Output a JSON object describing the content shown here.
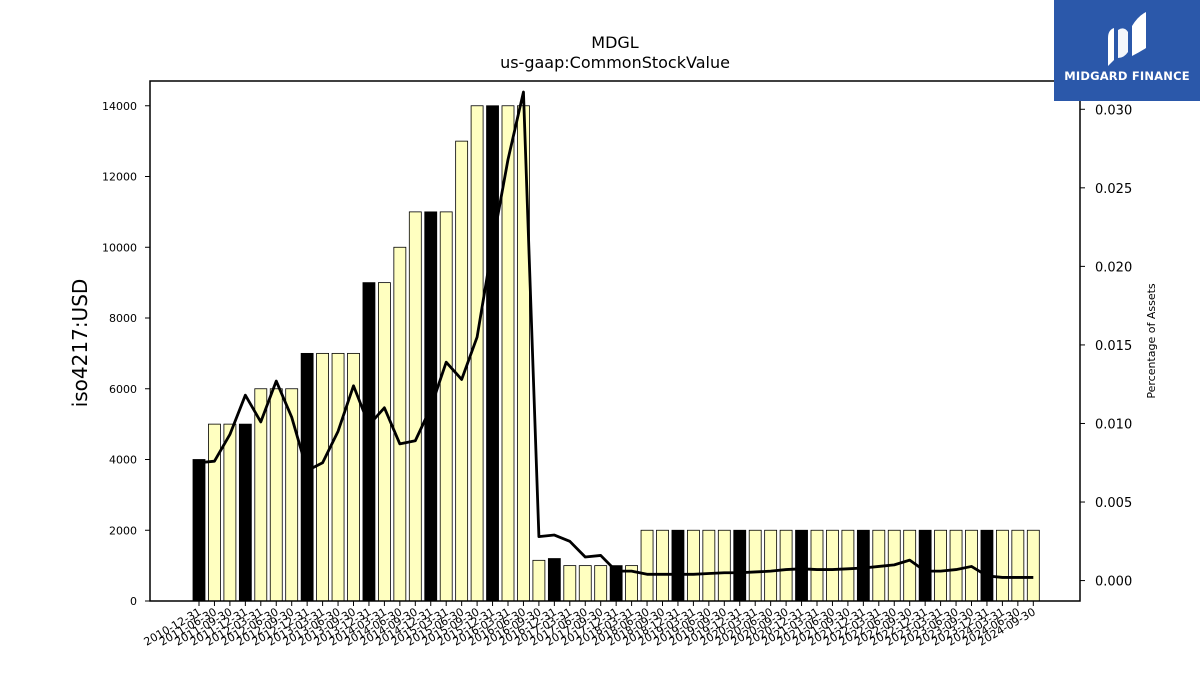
{
  "chart_data": {
    "type": "bar",
    "title": "MDGL",
    "subtitle": "us-gaap:CommonStockValue",
    "ylabel": "iso4217:USD",
    "y2label": "Percentage of Assets",
    "ylim": [
      0,
      14700
    ],
    "y2lim": [
      -0.0013,
      0.0318
    ],
    "yticks": [
      0,
      2000,
      4000,
      6000,
      8000,
      10000,
      12000,
      14000
    ],
    "y2ticks": [
      0.0,
      0.005,
      0.01,
      0.015,
      0.02,
      0.025,
      0.03
    ],
    "y2tick_labels": [
      "0.000",
      "0.005",
      "0.010",
      "0.015",
      "0.020",
      "0.025",
      "0.030"
    ],
    "grid": false,
    "colors": {
      "annual": "#000000",
      "quarter": "#ffffc0",
      "edge": "#000000",
      "line": "#000000"
    },
    "categories": [
      "2010-12-31",
      "2011-06-30",
      "2011-09-30",
      "2011-12-31",
      "2012-03-31",
      "2012-06-30",
      "2012-09-30",
      "2012-12-31",
      "2013-03-31",
      "2013-06-30",
      "2013-09-30",
      "2013-12-31",
      "2014-03-31",
      "2014-06-30",
      "2014-09-30",
      "2014-12-31",
      "2015-03-31",
      "2015-06-30",
      "2015-09-30",
      "2015-12-31",
      "2016-03-31",
      "2016-06-30",
      "2016-09-30",
      "2016-12-31",
      "2017-03-31",
      "2017-06-30",
      "2017-09-30",
      "2017-12-31",
      "2018-03-31",
      "2018-06-30",
      "2018-09-30",
      "2018-12-31",
      "2019-03-31",
      "2019-06-30",
      "2019-09-30",
      "2019-12-31",
      "2020-03-31",
      "2020-06-30",
      "2020-09-30",
      "2020-12-31",
      "2021-03-31",
      "2021-06-30",
      "2021-09-30",
      "2021-12-31",
      "2022-03-31",
      "2022-06-30",
      "2022-09-30",
      "2022-12-31",
      "2023-03-31",
      "2023-06-30",
      "2023-09-30",
      "2023-12-31",
      "2024-03-31",
      "2024-06-30",
      "2024-09-30"
    ],
    "series": [
      {
        "kind": "bar",
        "values": [
          4000,
          5000,
          5000,
          5000,
          6000,
          6000,
          6000,
          7000,
          7000,
          7000,
          7000,
          9000,
          9000,
          10000,
          11000,
          11000,
          11000,
          13000,
          14000,
          14000,
          14000,
          14000,
          1150,
          1200,
          1000,
          1000,
          1000,
          1000,
          1000,
          2000,
          2000,
          2000,
          2000,
          2000,
          2000,
          2000,
          2000,
          2000,
          2000,
          2000,
          2000,
          2000,
          2000,
          2000,
          2000,
          2000,
          2000,
          2000,
          2000,
          2000,
          2000,
          2000,
          2000,
          2000,
          2000
        ],
        "annual": [
          true,
          false,
          false,
          true,
          false,
          false,
          false,
          true,
          false,
          false,
          false,
          true,
          false,
          false,
          false,
          true,
          false,
          false,
          false,
          true,
          false,
          false,
          false,
          true,
          false,
          false,
          false,
          true,
          false,
          false,
          false,
          true,
          false,
          false,
          false,
          true,
          false,
          false,
          false,
          true,
          false,
          false,
          false,
          true,
          false,
          false,
          false,
          true,
          false,
          false,
          false,
          true,
          false,
          false,
          false
        ]
      },
      {
        "kind": "line",
        "axis": "right",
        "values": [
          0.0075,
          0.0076,
          0.0093,
          0.0118,
          0.0101,
          0.0127,
          0.0104,
          0.007,
          0.0075,
          0.0095,
          0.0124,
          0.0099,
          0.011,
          0.0087,
          0.0089,
          0.011,
          0.0139,
          0.0128,
          0.0155,
          0.0214,
          0.0268,
          0.0311,
          0.0028,
          0.0029,
          0.0025,
          0.0015,
          0.0016,
          0.0006,
          0.0006,
          0.0004,
          0.0004,
          0.0004,
          0.0004,
          0.00045,
          0.0005,
          0.0005,
          0.00055,
          0.0006,
          0.0007,
          0.00075,
          0.0007,
          0.0007,
          0.00075,
          0.0008,
          0.0009,
          0.001,
          0.0013,
          0.0006,
          0.0006,
          0.0007,
          0.0009,
          0.0003,
          0.0002,
          0.0002,
          0.0002
        ]
      }
    ]
  },
  "logo": {
    "text": "MIDGARD FINANCE",
    "icon": "midgard-logo-icon"
  }
}
